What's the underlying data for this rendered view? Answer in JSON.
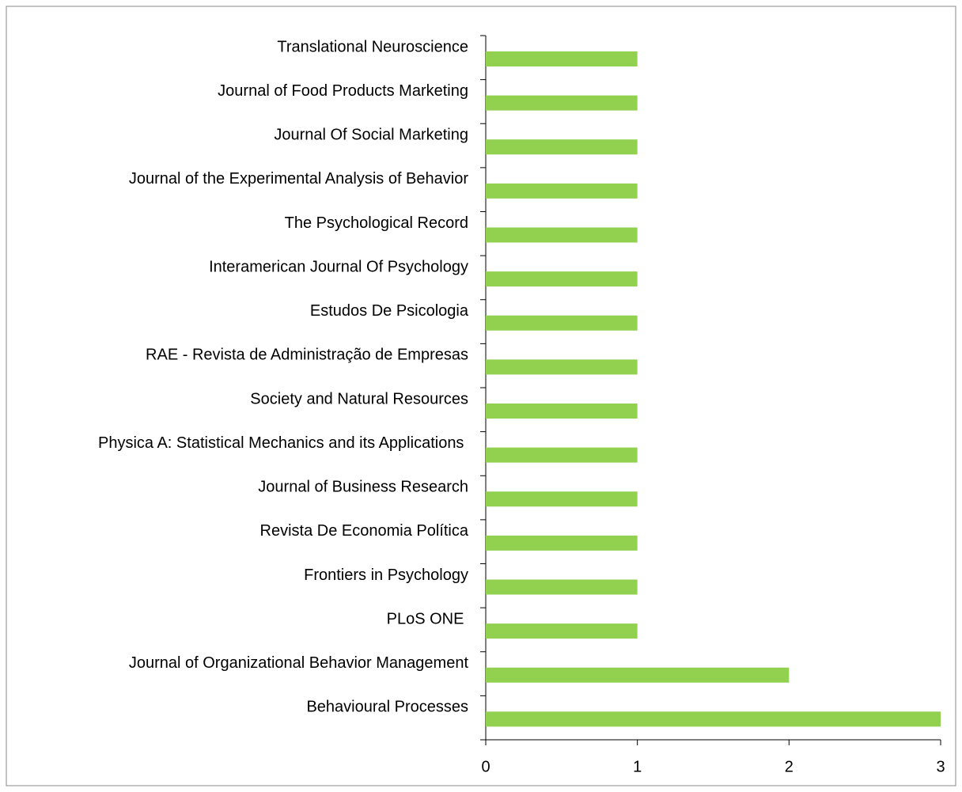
{
  "chart_data": {
    "type": "bar",
    "orientation": "horizontal",
    "categories": [
      "Translational Neuroscience",
      "Journal of Food Products Marketing",
      "Journal Of Social Marketing",
      "Journal of the Experimental Analysis of Behavior",
      "The Psychological Record",
      "Interamerican Journal Of Psychology",
      "Estudos De Psicologia",
      "RAE - Revista de Administração de Empresas",
      "Society and Natural Resources",
      "Physica A: Statistical Mechanics and its Applications ",
      "Journal of Business Research",
      "Revista De Economia Política",
      "Frontiers in Psychology",
      "PLoS ONE ",
      "Journal of Organizational Behavior Management",
      "Behavioural Processes"
    ],
    "values": [
      1,
      1,
      1,
      1,
      1,
      1,
      1,
      1,
      1,
      1,
      1,
      1,
      1,
      1,
      2,
      3
    ],
    "color": "#92d050",
    "xlim": [
      0,
      3
    ],
    "xticks": [
      0,
      1,
      2,
      3
    ],
    "grid": false
  }
}
